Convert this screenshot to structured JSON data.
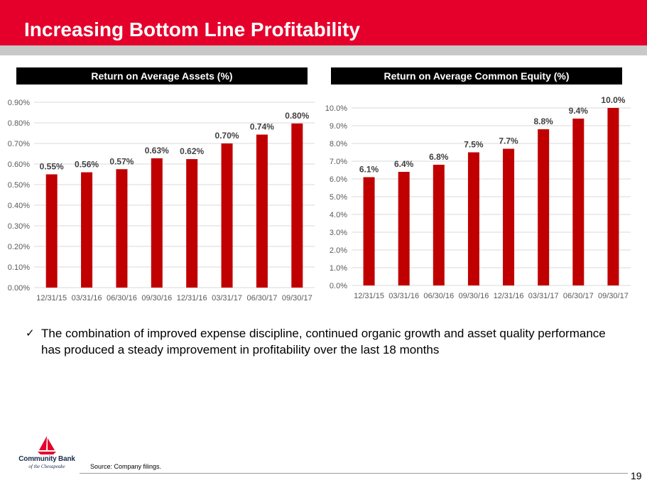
{
  "page": {
    "title": "Increasing Bottom Line Profitability",
    "bullet": "The combination of improved expense discipline, continued organic growth and asset quality performance has produced a steady improvement in profitability over the last 18 months",
    "source": "Source: Company filings.",
    "page_number": "19",
    "logo": {
      "name": "Community Bank",
      "sub": "of the Chesapeake",
      "icon": "sailboat-logo-icon"
    },
    "colors": {
      "brand": "#e4002b",
      "bar": "#c00000",
      "header_band": "#e4002b"
    }
  },
  "chart_data": [
    {
      "type": "bar",
      "title": "Return on Average Assets (%)",
      "categories": [
        "12/31/15",
        "03/31/16",
        "06/30/16",
        "09/30/16",
        "12/31/16",
        "03/31/17",
        "06/30/17",
        "09/30/17"
      ],
      "values": [
        0.55,
        0.56,
        0.575,
        0.628,
        0.624,
        0.7,
        0.743,
        0.797
      ],
      "data_labels": [
        "0.55%",
        "0.56%",
        "0.57%",
        "0.63%",
        "0.62%",
        "0.70%",
        "0.74%",
        "0.80%"
      ],
      "ylim": [
        0,
        0.9
      ],
      "yticks": [
        0,
        0.1,
        0.2,
        0.3,
        0.4,
        0.5,
        0.6,
        0.7,
        0.8,
        0.9
      ],
      "ytick_labels": [
        "0.00%",
        "0.10%",
        "0.20%",
        "0.30%",
        "0.40%",
        "0.50%",
        "0.60%",
        "0.70%",
        "0.80%",
        "0.90%"
      ],
      "grid": true,
      "bar_color": "#c00000"
    },
    {
      "type": "bar",
      "title": "Return on Average Common Equity (%)",
      "categories": [
        "12/31/15",
        "03/31/16",
        "06/30/16",
        "09/30/16",
        "12/31/16",
        "03/31/17",
        "06/30/17",
        "09/30/17"
      ],
      "values": [
        6.1,
        6.4,
        6.8,
        7.5,
        7.7,
        8.8,
        9.4,
        10.0
      ],
      "data_labels": [
        "6.1%",
        "6.4%",
        "6.8%",
        "7.5%",
        "7.7%",
        "8.8%",
        "9.4%",
        "10.0%"
      ],
      "ylim": [
        0,
        10
      ],
      "yticks": [
        0,
        1,
        2,
        3,
        4,
        5,
        6,
        7,
        8,
        9,
        10
      ],
      "ytick_labels": [
        "0.0%",
        "1.0%",
        "2.0%",
        "3.0%",
        "4.0%",
        "5.0%",
        "6.0%",
        "7.0%",
        "8.0%",
        "9.0%",
        "10.0%"
      ],
      "grid": true,
      "bar_color": "#c00000"
    }
  ]
}
